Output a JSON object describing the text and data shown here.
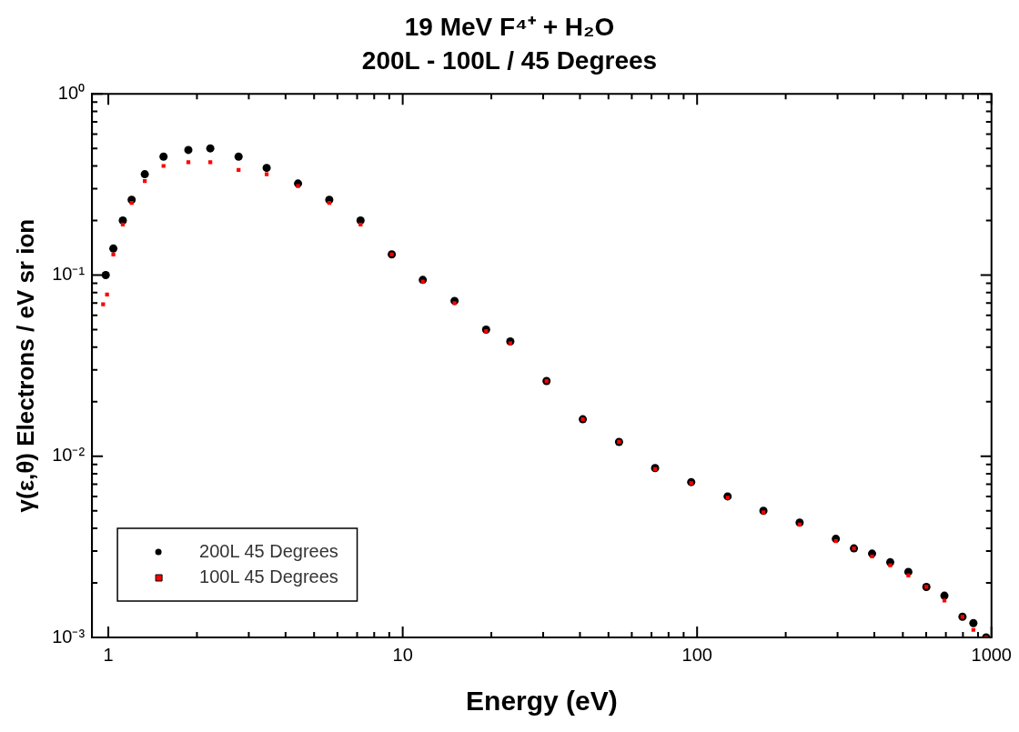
{
  "chart_data": {
    "type": "scatter",
    "title": "19 MeV F⁴⁺ + H₂O",
    "subtitle": "200L - 100L / 45 Degrees",
    "xlabel": "Energy (eV)",
    "ylabel": "γ(ε,θ) Electrons / eV sr ion",
    "log": "xy",
    "grid": false,
    "legend": "bottom left",
    "xlim": [
      0.88,
      1000
    ],
    "ylim": [
      0.001,
      1
    ],
    "xticks": [
      1,
      {
        "value": 2,
        "label": null
      },
      {
        "value": 3,
        "label": null
      },
      {
        "value": 4,
        "label": null
      },
      {
        "value": 5,
        "label": null
      },
      {
        "value": 6,
        "label": null
      },
      {
        "value": 7,
        "label": null
      },
      {
        "value": 8,
        "label": null
      },
      {
        "value": 9,
        "label": null
      },
      10,
      {
        "value": 20,
        "label": null
      },
      {
        "value": 30,
        "label": null
      },
      {
        "value": 40,
        "label": null
      },
      {
        "value": 50,
        "label": null
      },
      {
        "value": 60,
        "label": null
      },
      {
        "value": 70,
        "label": null
      },
      {
        "value": 80,
        "label": null
      },
      {
        "value": 90,
        "label": null
      },
      100,
      {
        "value": 200,
        "label": null
      },
      {
        "value": 300,
        "label": null
      },
      {
        "value": 400,
        "label": null
      },
      {
        "value": 500,
        "label": null
      },
      {
        "value": 600,
        "label": null
      },
      {
        "value": 700,
        "label": null
      },
      {
        "value": 800,
        "label": null
      },
      {
        "value": 900,
        "label": null
      },
      1000
    ],
    "yticks": [
      {
        "value": 0.001,
        "label": "10⁻³"
      },
      {
        "value": 0.002,
        "label": null
      },
      {
        "value": 0.003,
        "label": null
      },
      {
        "value": 0.004,
        "label": null
      },
      {
        "value": 0.005,
        "label": null
      },
      {
        "value": 0.006,
        "label": null
      },
      {
        "value": 0.007,
        "label": null
      },
      {
        "value": 0.008,
        "label": null
      },
      {
        "value": 0.009,
        "label": null
      },
      {
        "value": 0.01,
        "label": "10⁻²"
      },
      {
        "value": 0.02,
        "label": null
      },
      {
        "value": 0.03,
        "label": null
      },
      {
        "value": 0.04,
        "label": null
      },
      {
        "value": 0.05,
        "label": null
      },
      {
        "value": 0.06,
        "label": null
      },
      {
        "value": 0.07,
        "label": null
      },
      {
        "value": 0.08,
        "label": null
      },
      {
        "value": 0.09,
        "label": null
      },
      {
        "value": 0.1,
        "label": "10⁻¹"
      },
      {
        "value": 0.2,
        "label": null
      },
      {
        "value": 0.3,
        "label": null
      },
      {
        "value": 0.4,
        "label": null
      },
      {
        "value": 0.5,
        "label": null
      },
      {
        "value": 0.6,
        "label": null
      },
      {
        "value": 0.7,
        "label": null
      },
      {
        "value": 0.8,
        "label": null
      },
      {
        "value": 0.9,
        "label": null
      },
      {
        "value": 1,
        "label": "10⁰"
      }
    ],
    "series": [
      {
        "name": "200L 45 Degrees",
        "color": "#000000",
        "marker": "circle",
        "x": [
          0.98,
          1.04,
          1.12,
          1.2,
          1.33,
          1.54,
          1.87,
          2.22,
          2.77,
          3.45,
          4.41,
          5.63,
          7.19,
          9.18,
          11.7,
          15,
          19.2,
          23.2,
          30.8,
          40.9,
          54.3,
          72,
          95.5,
          127,
          168,
          223,
          296,
          341,
          393,
          453,
          522,
          601,
          692,
          797,
          868,
          959
        ],
        "values": [
          0.1,
          0.14,
          0.2,
          0.26,
          0.36,
          0.45,
          0.49,
          0.5,
          0.45,
          0.39,
          0.32,
          0.26,
          0.2,
          0.13,
          0.094,
          0.072,
          0.05,
          0.043,
          0.026,
          0.016,
          0.012,
          0.0086,
          0.0072,
          0.006,
          0.005,
          0.0043,
          0.0035,
          0.0031,
          0.0029,
          0.0026,
          0.0023,
          0.0019,
          0.0017,
          0.0013,
          0.0012,
          0.001
        ]
      },
      {
        "name": "100L 45 Degrees",
        "color": "#ff0000",
        "marker": "square",
        "x": [
          0.96,
          0.99,
          1.04,
          1.12,
          1.2,
          1.33,
          1.54,
          1.87,
          2.22,
          2.77,
          3.45,
          4.41,
          5.63,
          7.19,
          9.18,
          11.7,
          15,
          19.2,
          23.2,
          30.8,
          40.9,
          54.3,
          72,
          95.5,
          127,
          168,
          223,
          296,
          341,
          393,
          453,
          522,
          601,
          692,
          797,
          868,
          959
        ],
        "values": [
          0.069,
          0.078,
          0.13,
          0.19,
          0.25,
          0.33,
          0.4,
          0.42,
          0.42,
          0.38,
          0.36,
          0.31,
          0.25,
          0.19,
          0.13,
          0.092,
          0.07,
          0.049,
          0.042,
          0.026,
          0.016,
          0.012,
          0.0085,
          0.0071,
          0.0059,
          0.0049,
          0.0042,
          0.0034,
          0.0031,
          0.0028,
          0.0025,
          0.0022,
          0.0019,
          0.0016,
          0.0013,
          0.0011,
          0.001
        ]
      }
    ]
  }
}
